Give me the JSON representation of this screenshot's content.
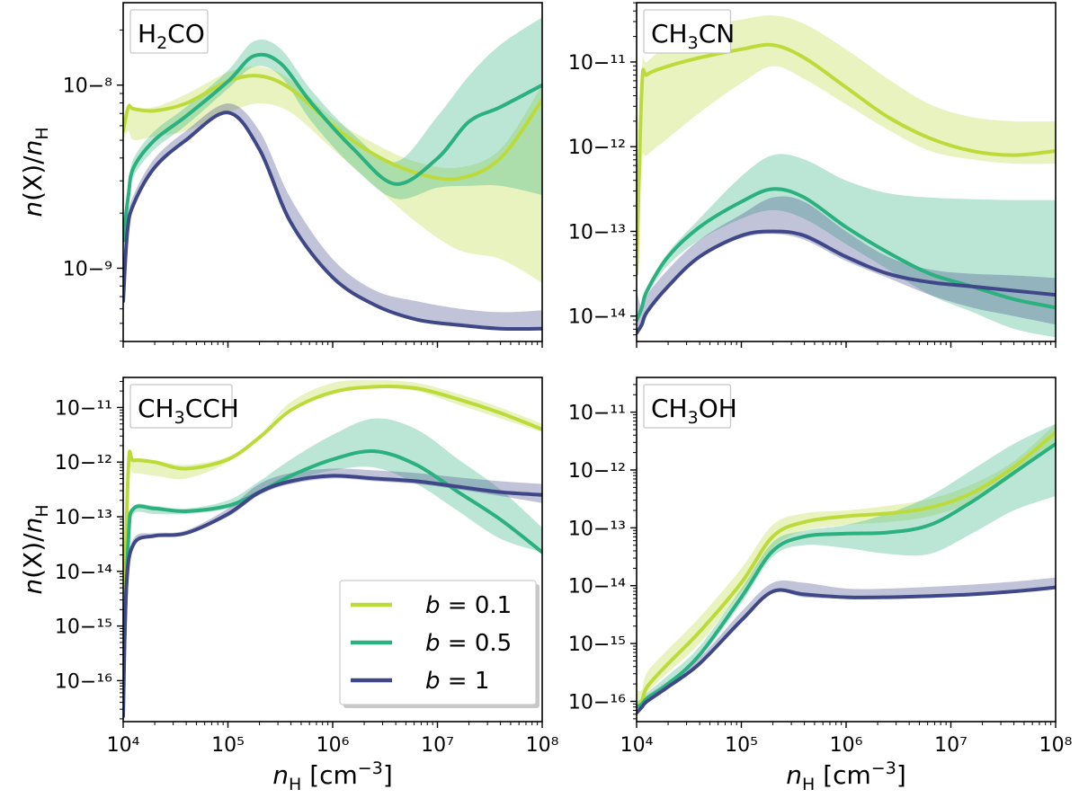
{
  "figure": {
    "xlabel": "n_H [cm^-3]",
    "ylabel": "n(X)/n_H",
    "colors": {
      "b=0.1": "#bcdb3a",
      "b=0.5": "#2bb07f",
      "b=1": "#3f4788"
    }
  },
  "legend": {
    "placement": "lower-right of bottom-left panel",
    "entries": [
      {
        "name": "b = 0.1",
        "color": "#bcdb3a"
      },
      {
        "name": "b = 0.5",
        "color": "#2bb07f"
      },
      {
        "name": "b = 1",
        "color": "#3f4788"
      }
    ]
  },
  "chart_data": [
    {
      "type": "line",
      "title": "H2CO",
      "xscale": "log",
      "yscale": "log",
      "xlim": [
        10000,
        100000000
      ],
      "ylim_log10": [
        -9.4,
        -7.55
      ],
      "ytick_exponents": [
        -9,
        -8
      ],
      "xtick_exponents": [
        4,
        5,
        6,
        7,
        8
      ],
      "xlabel": "",
      "ylabel": "n(X)/n_H",
      "series": [
        {
          "name": "b = 0.1",
          "color": "#bcdb3a",
          "x": [
            4.0,
            4.05,
            4.1,
            4.3,
            4.6,
            5.0,
            5.3,
            5.6,
            6.0,
            6.4,
            6.8,
            7.2,
            7.6,
            8.0
          ],
          "y": [
            -8.25,
            -8.12,
            -8.13,
            -8.14,
            -8.1,
            -7.98,
            -7.95,
            -8.02,
            -8.22,
            -8.38,
            -8.48,
            -8.51,
            -8.4,
            -8.08
          ],
          "band_lo": [
            -8.3,
            -8.25,
            -8.3,
            -8.28,
            -8.25,
            -8.15,
            -8.1,
            -8.15,
            -8.35,
            -8.55,
            -8.75,
            -8.9,
            -8.95,
            -9.08
          ],
          "band_hi": [
            -8.2,
            -8.1,
            -8.12,
            -8.12,
            -8.05,
            -7.93,
            -7.9,
            -7.97,
            -8.18,
            -8.32,
            -8.42,
            -8.45,
            -8.35,
            -8.0
          ]
        },
        {
          "name": "b = 0.5",
          "color": "#2bb07f",
          "x": [
            4.0,
            4.05,
            4.1,
            4.3,
            4.6,
            5.0,
            5.25,
            5.5,
            5.8,
            6.2,
            6.6,
            7.0,
            7.3,
            7.6,
            8.0
          ],
          "y": [
            -8.85,
            -8.6,
            -8.45,
            -8.3,
            -8.17,
            -7.98,
            -7.84,
            -7.88,
            -8.1,
            -8.35,
            -8.54,
            -8.4,
            -8.2,
            -8.12,
            -8.0
          ],
          "band_lo": [
            -8.9,
            -8.65,
            -8.5,
            -8.35,
            -8.22,
            -8.02,
            -7.9,
            -7.95,
            -8.2,
            -8.45,
            -8.62,
            -8.56,
            -8.55,
            -8.55,
            -8.6
          ],
          "band_hi": [
            -8.8,
            -8.55,
            -8.4,
            -8.25,
            -8.12,
            -7.92,
            -7.76,
            -7.8,
            -8.03,
            -8.27,
            -8.42,
            -8.17,
            -7.95,
            -7.78,
            -7.63
          ]
        },
        {
          "name": "b = 1",
          "color": "#3f4788",
          "x": [
            4.0,
            4.04,
            4.1,
            4.3,
            4.6,
            5.0,
            5.3,
            5.6,
            6.0,
            6.4,
            6.8,
            7.2,
            7.6,
            8.0
          ],
          "y": [
            -9.18,
            -8.8,
            -8.65,
            -8.45,
            -8.3,
            -8.15,
            -8.35,
            -8.75,
            -9.05,
            -9.2,
            -9.28,
            -9.31,
            -9.33,
            -9.33
          ],
          "band_lo": [
            -9.18,
            -8.8,
            -8.65,
            -8.45,
            -8.3,
            -8.15,
            -8.35,
            -8.75,
            -9.05,
            -9.2,
            -9.28,
            -9.31,
            -9.33,
            -9.33
          ],
          "band_hi": [
            -9.15,
            -8.75,
            -8.6,
            -8.4,
            -8.25,
            -8.1,
            -8.25,
            -8.62,
            -8.95,
            -9.12,
            -9.18,
            -9.22,
            -9.24,
            -9.23
          ]
        }
      ]
    },
    {
      "type": "line",
      "title": "CH3CN",
      "xscale": "log",
      "yscale": "log",
      "xlim": [
        10000,
        100000000
      ],
      "ylim_log10": [
        -14.3,
        -10.3
      ],
      "ytick_exponents": [
        -14,
        -13,
        -12,
        -11
      ],
      "xtick_exponents": [
        4,
        5,
        6,
        7,
        8
      ],
      "xlabel": "",
      "ylabel": "",
      "series": [
        {
          "name": "b = 0.1",
          "color": "#bcdb3a",
          "x": [
            4.0,
            4.05,
            4.1,
            4.3,
            4.6,
            5.0,
            5.3,
            5.6,
            6.0,
            6.4,
            6.8,
            7.2,
            7.6,
            8.0
          ],
          "y": [
            -13.5,
            -11.3,
            -11.15,
            -11.05,
            -10.95,
            -10.85,
            -10.8,
            -10.95,
            -11.3,
            -11.65,
            -11.9,
            -12.05,
            -12.1,
            -12.05
          ],
          "band_lo": [
            -13.5,
            -12.2,
            -12.1,
            -11.9,
            -11.6,
            -11.25,
            -11.05,
            -11.2,
            -11.5,
            -11.8,
            -12.05,
            -12.15,
            -12.2,
            -12.2
          ],
          "band_hi": [
            -13.0,
            -11.1,
            -11.0,
            -10.8,
            -10.6,
            -10.5,
            -10.45,
            -10.55,
            -10.85,
            -11.2,
            -11.5,
            -11.65,
            -11.7,
            -11.7
          ]
        },
        {
          "name": "b = 0.5",
          "color": "#2bb07f",
          "x": [
            4.0,
            4.05,
            4.1,
            4.3,
            4.6,
            5.0,
            5.3,
            5.6,
            6.0,
            6.4,
            6.8,
            7.2,
            7.6,
            8.0
          ],
          "y": [
            -14.05,
            -13.9,
            -13.7,
            -13.3,
            -12.95,
            -12.65,
            -12.5,
            -12.6,
            -12.95,
            -13.25,
            -13.5,
            -13.65,
            -13.8,
            -13.9
          ],
          "band_lo": [
            -14.1,
            -13.95,
            -13.75,
            -13.4,
            -13.1,
            -12.85,
            -12.75,
            -12.85,
            -13.15,
            -13.45,
            -13.75,
            -13.95,
            -14.15,
            -14.25
          ],
          "band_hi": [
            -14.0,
            -13.85,
            -13.65,
            -13.25,
            -12.85,
            -12.35,
            -12.1,
            -12.15,
            -12.4,
            -12.55,
            -12.6,
            -12.62,
            -12.63,
            -12.63
          ]
        },
        {
          "name": "b = 1",
          "color": "#3f4788",
          "x": [
            4.0,
            4.05,
            4.1,
            4.3,
            4.6,
            5.0,
            5.3,
            5.6,
            6.0,
            6.4,
            6.8,
            7.2,
            7.6,
            8.0
          ],
          "y": [
            -14.2,
            -14.1,
            -13.95,
            -13.65,
            -13.3,
            -13.05,
            -13.0,
            -13.05,
            -13.3,
            -13.5,
            -13.6,
            -13.65,
            -13.7,
            -13.75
          ],
          "band_lo": [
            -14.2,
            -14.1,
            -13.95,
            -13.65,
            -13.3,
            -13.08,
            -13.03,
            -13.1,
            -13.35,
            -13.55,
            -13.75,
            -13.9,
            -14.0,
            -14.1
          ],
          "band_hi": [
            -13.7,
            -13.9,
            -13.75,
            -13.45,
            -13.1,
            -12.8,
            -12.6,
            -12.65,
            -13.0,
            -13.3,
            -13.45,
            -13.5,
            -13.52,
            -13.55
          ]
        }
      ]
    },
    {
      "type": "line",
      "title": "CH3CCH",
      "xscale": "log",
      "yscale": "log",
      "xlim": [
        10000,
        100000000
      ],
      "ylim_log10": [
        -16.75,
        -10.45
      ],
      "ytick_exponents": [
        -16,
        -15,
        -14,
        -13,
        -12,
        -11
      ],
      "xtick_exponents": [
        4,
        5,
        6,
        7,
        8
      ],
      "xlabel": "n_H [cm^-3]",
      "ylabel": "n(X)/n_H",
      "series": [
        {
          "name": "b = 0.1",
          "color": "#bcdb3a",
          "x": [
            4.0,
            4.05,
            4.1,
            4.3,
            4.6,
            5.0,
            5.3,
            5.6,
            6.0,
            6.4,
            6.8,
            7.2,
            7.6,
            8.0
          ],
          "y": [
            -15.5,
            -12.1,
            -11.97,
            -12.0,
            -12.12,
            -11.95,
            -11.55,
            -11.05,
            -10.72,
            -10.62,
            -10.65,
            -10.85,
            -11.1,
            -11.4
          ],
          "band_lo": [
            -15.5,
            -12.3,
            -12.2,
            -12.25,
            -12.3,
            -12.0,
            -11.5,
            -11.0,
            -10.75,
            -10.65,
            -10.7,
            -10.95,
            -11.2,
            -11.45
          ],
          "band_hi": [
            -15.3,
            -12.05,
            -11.95,
            -11.97,
            -12.05,
            -11.9,
            -11.5,
            -10.9,
            -10.55,
            -10.5,
            -10.55,
            -10.75,
            -11.0,
            -11.3
          ]
        },
        {
          "name": "b = 0.5",
          "color": "#2bb07f",
          "x": [
            4.0,
            4.05,
            4.1,
            4.3,
            4.6,
            5.0,
            5.3,
            5.6,
            6.0,
            6.4,
            6.8,
            7.2,
            7.6,
            8.0
          ],
          "y": [
            -16.0,
            -13.4,
            -12.85,
            -12.85,
            -12.9,
            -12.8,
            -12.55,
            -12.25,
            -11.95,
            -11.8,
            -12.05,
            -12.55,
            -13.05,
            -13.65
          ],
          "band_lo": [
            -16.0,
            -13.5,
            -12.95,
            -12.95,
            -12.95,
            -12.85,
            -12.6,
            -12.35,
            -12.15,
            -12.1,
            -12.4,
            -12.9,
            -13.4,
            -13.65
          ],
          "band_hi": [
            -15.9,
            -13.3,
            -12.8,
            -12.8,
            -12.85,
            -12.7,
            -12.35,
            -11.95,
            -11.5,
            -11.2,
            -11.4,
            -11.95,
            -12.5,
            -13.2
          ]
        },
        {
          "name": "b = 1",
          "color": "#3f4788",
          "x": [
            4.0,
            4.03,
            4.1,
            4.3,
            4.6,
            5.0,
            5.3,
            5.6,
            6.0,
            6.4,
            6.8,
            7.2,
            7.6,
            8.0
          ],
          "y": [
            -16.65,
            -14.3,
            -13.5,
            -13.35,
            -13.3,
            -12.95,
            -12.55,
            -12.35,
            -12.25,
            -12.3,
            -12.35,
            -12.45,
            -12.55,
            -12.6
          ],
          "band_lo": [
            -16.65,
            -14.3,
            -13.5,
            -13.35,
            -13.3,
            -13.0,
            -12.6,
            -12.4,
            -12.3,
            -12.35,
            -12.4,
            -12.5,
            -12.62,
            -12.75
          ],
          "band_hi": [
            -16.6,
            -14.2,
            -13.4,
            -13.3,
            -13.25,
            -12.85,
            -12.4,
            -12.2,
            -12.12,
            -12.15,
            -12.2,
            -12.28,
            -12.35,
            -12.4
          ]
        }
      ]
    },
    {
      "type": "line",
      "title": "CH3OH",
      "xscale": "log",
      "yscale": "log",
      "xlim": [
        10000,
        100000000
      ],
      "ylim_log10": [
        -16.35,
        -10.4
      ],
      "ytick_exponents": [
        -16,
        -15,
        -14,
        -13,
        -12,
        -11
      ],
      "xtick_exponents": [
        4,
        5,
        6,
        7,
        8
      ],
      "xlabel": "n_H [cm^-3]",
      "ylabel": "",
      "series": [
        {
          "name": "b = 0.1",
          "color": "#bcdb3a",
          "x": [
            4.0,
            4.05,
            4.1,
            4.3,
            4.6,
            5.0,
            5.3,
            5.6,
            6.0,
            6.4,
            6.8,
            7.2,
            7.6,
            8.0
          ],
          "y": [
            -16.1,
            -16.0,
            -15.75,
            -15.35,
            -14.8,
            -13.95,
            -13.15,
            -12.9,
            -12.8,
            -12.75,
            -12.65,
            -12.4,
            -11.95,
            -11.35
          ],
          "band_lo": [
            -16.15,
            -16.05,
            -15.85,
            -15.5,
            -15.0,
            -14.1,
            -13.35,
            -13.05,
            -12.95,
            -12.9,
            -12.8,
            -12.55,
            -12.1,
            -11.5
          ],
          "band_hi": [
            -15.8,
            -15.8,
            -15.5,
            -15.1,
            -14.55,
            -13.7,
            -12.95,
            -12.75,
            -12.7,
            -12.62,
            -12.5,
            -12.25,
            -11.85,
            -11.2
          ]
        },
        {
          "name": "b = 0.5",
          "color": "#2bb07f",
          "x": [
            4.0,
            4.05,
            4.1,
            4.3,
            4.6,
            5.0,
            5.3,
            5.6,
            6.0,
            6.4,
            6.8,
            7.2,
            7.6,
            8.0
          ],
          "y": [
            -16.1,
            -16.05,
            -15.95,
            -15.7,
            -15.2,
            -14.2,
            -13.4,
            -13.15,
            -13.1,
            -13.08,
            -12.95,
            -12.55,
            -12.05,
            -11.55
          ],
          "band_lo": [
            -16.1,
            -16.05,
            -15.95,
            -15.7,
            -15.25,
            -14.3,
            -13.5,
            -13.3,
            -13.35,
            -13.45,
            -13.45,
            -13.1,
            -12.7,
            -12.45
          ],
          "band_hi": [
            -16.0,
            -15.95,
            -15.85,
            -15.55,
            -15.05,
            -14.05,
            -13.25,
            -13.05,
            -12.95,
            -12.75,
            -12.45,
            -12.0,
            -11.55,
            -11.2
          ]
        },
        {
          "name": "b = 1",
          "color": "#3f4788",
          "x": [
            4.0,
            4.05,
            4.1,
            4.3,
            4.6,
            5.0,
            5.3,
            5.6,
            6.0,
            6.4,
            6.8,
            7.2,
            7.6,
            8.0
          ],
          "y": [
            -16.2,
            -16.1,
            -16.0,
            -15.75,
            -15.35,
            -14.6,
            -14.1,
            -14.15,
            -14.2,
            -14.2,
            -14.18,
            -14.15,
            -14.1,
            -14.03
          ],
          "band_lo": [
            -16.2,
            -16.1,
            -16.0,
            -15.75,
            -15.35,
            -14.6,
            -14.12,
            -14.2,
            -14.22,
            -14.22,
            -14.2,
            -14.18,
            -14.12,
            -14.05
          ],
          "band_hi": [
            -16.1,
            -16.0,
            -15.9,
            -15.65,
            -15.25,
            -14.45,
            -13.95,
            -13.95,
            -14.05,
            -14.05,
            -14.02,
            -13.98,
            -13.93,
            -13.86
          ]
        }
      ]
    }
  ]
}
